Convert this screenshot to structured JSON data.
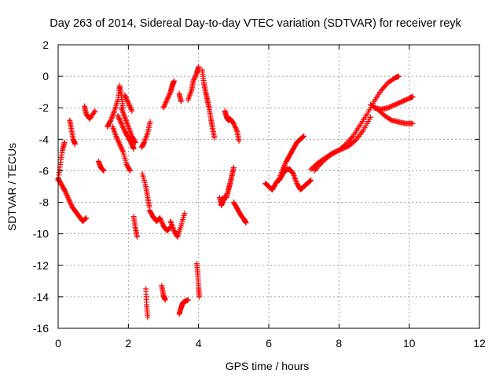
{
  "chart_data": {
    "type": "scatter",
    "title": "Day 263 of 2014, Sidereal Day-to-day VTEC variation (SDTVAR) for receiver reyk",
    "xlabel": "GPS time / hours",
    "ylabel": "SDTVAR / TECUs",
    "xlim": [
      0,
      12
    ],
    "ylim": [
      -16,
      2
    ],
    "xticks": [
      0,
      2,
      4,
      6,
      8,
      10,
      12
    ],
    "yticks": [
      2,
      0,
      -2,
      -4,
      -6,
      -8,
      -10,
      -12,
      -14,
      -16
    ],
    "grid": true,
    "marker": "+",
    "series_color": "#ff0000",
    "tracks": [
      {
        "x": [
          0.0,
          0.06,
          0.12,
          0.18
        ],
        "y": [
          -6.6,
          -5.6,
          -4.7,
          -4.2
        ]
      },
      {
        "x": [
          0.0,
          0.1,
          0.2,
          0.3,
          0.4,
          0.5,
          0.6,
          0.7,
          0.8
        ],
        "y": [
          -6.5,
          -6.9,
          -7.3,
          -7.8,
          -8.3,
          -8.6,
          -8.9,
          -9.2,
          -9.0
        ]
      },
      {
        "x": [
          0.33,
          0.38,
          0.43,
          0.48
        ],
        "y": [
          -2.8,
          -3.4,
          -4.0,
          -4.3
        ]
      },
      {
        "x": [
          0.75,
          0.8,
          0.9,
          1.05
        ],
        "y": [
          -1.9,
          -2.4,
          -2.7,
          -2.2
        ]
      },
      {
        "x": [
          1.15,
          1.22,
          1.3
        ],
        "y": [
          -5.4,
          -5.8,
          -6.0
        ]
      },
      {
        "x": [
          1.4,
          1.5,
          1.6,
          1.7,
          1.75,
          1.8,
          1.85
        ],
        "y": [
          -3.2,
          -2.8,
          -2.2,
          -1.5,
          -0.6,
          -1.2,
          -2.0
        ]
      },
      {
        "x": [
          1.55,
          1.65,
          1.75,
          1.85,
          1.95,
          2.05
        ],
        "y": [
          -3.2,
          -3.8,
          -4.3,
          -4.8,
          -5.6,
          -6.0
        ]
      },
      {
        "x": [
          1.7,
          1.8,
          1.9,
          2.0,
          2.1,
          2.15
        ],
        "y": [
          -2.5,
          -3.0,
          -3.5,
          -3.9,
          -4.3,
          -4.6
        ]
      },
      {
        "x": [
          1.8,
          1.9,
          2.0,
          2.1,
          2.2
        ],
        "y": [
          -2.0,
          -2.6,
          -3.2,
          -3.8,
          -4.2
        ]
      },
      {
        "x": [
          1.9,
          2.0,
          2.1
        ],
        "y": [
          -1.2,
          -1.7,
          -2.2
        ]
      },
      {
        "x": [
          2.15,
          2.2,
          2.25
        ],
        "y": [
          -8.9,
          -9.6,
          -10.2
        ]
      },
      {
        "x": [
          2.38,
          2.45,
          2.55,
          2.62
        ],
        "y": [
          -4.5,
          -4.2,
          -3.6,
          -2.9
        ]
      },
      {
        "x": [
          2.4,
          2.5,
          2.55,
          2.6
        ],
        "y": [
          -6.2,
          -7.0,
          -7.7,
          -8.3
        ]
      },
      {
        "x": [
          2.6,
          2.7,
          2.8,
          2.9,
          3.0,
          3.1,
          3.2
        ],
        "y": [
          -8.5,
          -8.9,
          -9.2,
          -9.0,
          -9.5,
          -9.8,
          -9.6
        ]
      },
      {
        "x": [
          2.5,
          2.52,
          2.55
        ],
        "y": [
          -13.5,
          -14.5,
          -15.3
        ]
      },
      {
        "x": [
          2.95,
          3.0,
          3.05
        ],
        "y": [
          -13.3,
          -13.9,
          -14.2
        ]
      },
      {
        "x": [
          3.0,
          3.1,
          3.2,
          3.25,
          3.3
        ],
        "y": [
          -2.0,
          -1.5,
          -1.0,
          -0.6,
          -0.3
        ]
      },
      {
        "x": [
          3.2,
          3.3,
          3.4,
          3.5,
          3.6
        ],
        "y": [
          -9.2,
          -9.8,
          -10.2,
          -9.5,
          -8.7
        ]
      },
      {
        "x": [
          3.45,
          3.5,
          3.55,
          3.6,
          3.7
        ],
        "y": [
          -15.1,
          -14.7,
          -14.4,
          -14.3,
          -14.2
        ]
      },
      {
        "x": [
          3.45,
          3.5
        ],
        "y": [
          -1.1,
          -1.6
        ]
      },
      {
        "x": [
          3.7,
          3.8,
          3.85,
          3.95,
          4.0
        ],
        "y": [
          -1.5,
          -0.9,
          -0.3,
          0.2,
          0.6
        ]
      },
      {
        "x": [
          3.95,
          3.98,
          4.0,
          4.02
        ],
        "y": [
          -11.9,
          -12.6,
          -13.4,
          -14.0
        ]
      },
      {
        "x": [
          4.1,
          4.15,
          4.2,
          4.25,
          4.3,
          4.35,
          4.4,
          4.45
        ],
        "y": [
          0.4,
          -0.4,
          -1.0,
          -1.5,
          -2.0,
          -2.7,
          -3.3,
          -3.9
        ]
      },
      {
        "x": [
          4.6,
          4.65,
          4.7,
          4.75
        ],
        "y": [
          -7.7,
          -8.2,
          -7.9,
          -7.6
        ]
      },
      {
        "x": [
          4.75,
          4.8,
          4.85,
          4.9,
          5.0,
          5.1,
          5.15
        ],
        "y": [
          -2.2,
          -2.6,
          -2.8,
          -2.7,
          -3.0,
          -3.5,
          -4.1
        ]
      },
      {
        "x": [
          4.8,
          4.85,
          4.9,
          4.95,
          5.0
        ],
        "y": [
          -7.7,
          -7.2,
          -6.8,
          -6.3,
          -5.8
        ]
      },
      {
        "x": [
          5.0,
          5.1,
          5.2,
          5.3,
          5.35
        ],
        "y": [
          -8.0,
          -8.4,
          -8.8,
          -9.1,
          -9.3
        ]
      },
      {
        "x": [
          5.9,
          6.0,
          6.1,
          6.2,
          6.3,
          6.4,
          6.5,
          6.6,
          6.7,
          6.8,
          6.9,
          7.0
        ],
        "y": [
          -6.8,
          -7.0,
          -7.2,
          -6.8,
          -6.5,
          -5.9,
          -5.4,
          -5.0,
          -4.6,
          -4.2,
          -4.0,
          -3.8
        ]
      },
      {
        "x": [
          6.3,
          6.4,
          6.5,
          6.6,
          6.7,
          6.8,
          6.9,
          7.0,
          7.1,
          7.2
        ],
        "y": [
          -6.6,
          -6.2,
          -5.9,
          -5.9,
          -6.2,
          -6.8,
          -7.2,
          -7.0,
          -6.8,
          -6.6
        ]
      },
      {
        "x": [
          7.3,
          7.5,
          7.7,
          7.9,
          8.1,
          8.3,
          8.5,
          8.7,
          8.9
        ],
        "y": [
          -6.0,
          -5.5,
          -5.1,
          -4.8,
          -4.6,
          -4.4,
          -4.0,
          -3.4,
          -2.6
        ]
      },
      {
        "x": [
          7.2,
          7.4,
          7.6,
          7.8,
          8.0,
          8.2,
          8.4,
          8.6,
          8.8,
          9.0,
          9.2,
          9.4,
          9.6,
          9.7
        ],
        "y": [
          -5.9,
          -5.5,
          -5.2,
          -4.9,
          -4.7,
          -4.3,
          -3.8,
          -3.1,
          -2.4,
          -1.6,
          -0.9,
          -0.4,
          -0.1,
          0.0
        ]
      },
      {
        "x": [
          8.9,
          9.1,
          9.3,
          9.5,
          9.7,
          9.9,
          10.1
        ],
        "y": [
          -1.8,
          -2.1,
          -2.5,
          -2.8,
          -2.9,
          -3.0,
          -3.0
        ]
      },
      {
        "x": [
          9.0,
          9.2,
          9.4,
          9.6,
          9.8,
          10.0,
          10.1
        ],
        "y": [
          -2.0,
          -2.1,
          -2.0,
          -1.8,
          -1.6,
          -1.4,
          -1.3
        ]
      }
    ]
  }
}
